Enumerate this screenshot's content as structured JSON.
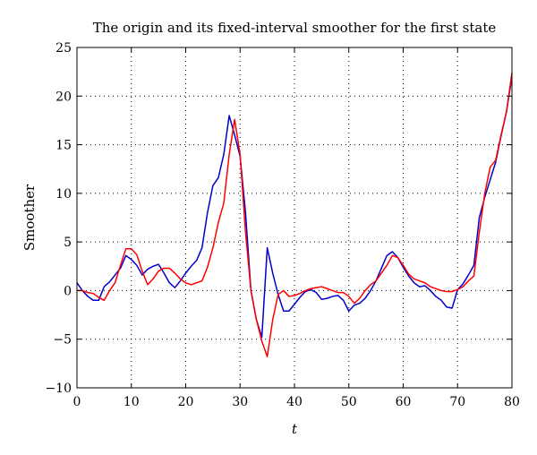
{
  "chart_data": {
    "type": "line",
    "title": "The origin and its fixed-interval smoother for the first state",
    "xlabel": "t",
    "ylabel": "Smoother",
    "xlim": [
      0,
      80
    ],
    "ylim": [
      -10,
      25
    ],
    "xticks": [
      0,
      10,
      20,
      30,
      40,
      50,
      60,
      70,
      80
    ],
    "yticks": [
      -10,
      -5,
      0,
      5,
      10,
      15,
      20,
      25
    ],
    "grid": true,
    "grid_style": "dotted",
    "legend": "none",
    "series": [
      {
        "color": "#0000cc",
        "x": [
          0,
          1,
          2,
          3,
          4,
          5,
          6,
          7,
          8,
          9,
          10,
          11,
          12,
          13,
          14,
          15,
          16,
          17,
          18,
          19,
          20,
          21,
          22,
          23,
          24,
          25,
          26,
          27,
          28,
          29,
          30,
          31,
          32,
          33,
          34,
          35,
          36,
          37,
          38,
          39,
          40,
          41,
          42,
          43,
          44,
          45,
          46,
          47,
          48,
          49,
          50,
          51,
          52,
          53,
          54,
          55,
          56,
          57,
          58,
          59,
          60,
          61,
          62,
          63,
          64,
          65,
          66,
          67,
          68,
          69,
          70,
          71,
          72,
          73,
          74,
          75,
          76,
          77,
          78,
          79,
          80
        ],
        "values": [
          0.8,
          0.0,
          -0.6,
          -1.0,
          -1.0,
          0.4,
          0.9,
          1.6,
          2.3,
          3.6,
          3.2,
          2.6,
          1.6,
          2.2,
          2.5,
          2.7,
          1.8,
          0.8,
          0.3,
          1.0,
          1.8,
          2.5,
          3.1,
          4.4,
          8.0,
          10.8,
          11.6,
          14.0,
          18.0,
          16.0,
          13.8,
          8.0,
          0.0,
          -3.0,
          -4.8,
          4.4,
          1.8,
          -0.4,
          -2.1,
          -2.1,
          -1.4,
          -0.7,
          -0.1,
          0.1,
          -0.2,
          -0.9,
          -0.8,
          -0.6,
          -0.5,
          -1.0,
          -2.1,
          -1.5,
          -1.3,
          -0.8,
          0.0,
          1.0,
          2.3,
          3.6,
          4.0,
          3.4,
          2.4,
          1.5,
          0.8,
          0.4,
          0.5,
          0.0,
          -0.6,
          -1.0,
          -1.7,
          -1.8,
          0.1,
          0.7,
          1.6,
          2.6,
          7.5,
          9.6,
          11.4,
          13.2,
          15.9,
          18.4,
          22.0
        ]
      },
      {
        "color": "#ff0000",
        "x": [
          0,
          1,
          2,
          3,
          4,
          5,
          6,
          7,
          8,
          9,
          10,
          11,
          12,
          13,
          14,
          15,
          16,
          17,
          18,
          19,
          20,
          21,
          22,
          23,
          24,
          25,
          26,
          27,
          28,
          29,
          30,
          31,
          32,
          33,
          34,
          35,
          36,
          37,
          38,
          39,
          40,
          41,
          42,
          43,
          44,
          45,
          46,
          47,
          48,
          49,
          50,
          51,
          52,
          53,
          54,
          55,
          56,
          57,
          58,
          59,
          60,
          61,
          62,
          63,
          64,
          65,
          66,
          67,
          68,
          69,
          70,
          71,
          72,
          73,
          74,
          75,
          76,
          77,
          78,
          79,
          80
        ],
        "values": [
          0.0,
          0.0,
          -0.2,
          -0.3,
          -0.7,
          -1.0,
          0.0,
          0.8,
          2.6,
          4.3,
          4.3,
          3.7,
          2.0,
          0.6,
          1.2,
          2.0,
          2.3,
          2.3,
          1.8,
          1.2,
          0.8,
          0.6,
          0.8,
          1.0,
          2.4,
          4.4,
          7.0,
          9.0,
          14.0,
          17.6,
          14.0,
          6.0,
          0.0,
          -3.0,
          -5.2,
          -6.8,
          -3.0,
          -0.4,
          0.0,
          -0.6,
          -0.5,
          -0.3,
          0.0,
          0.2,
          0.3,
          0.4,
          0.2,
          0.0,
          -0.2,
          -0.2,
          -0.6,
          -1.3,
          -0.8,
          0.0,
          0.6,
          1.0,
          1.8,
          2.6,
          3.6,
          3.4,
          2.6,
          1.7,
          1.2,
          1.0,
          0.8,
          0.4,
          0.2,
          0.0,
          -0.1,
          -0.1,
          0.1,
          0.4,
          1.0,
          1.5,
          6.0,
          10.0,
          12.7,
          13.4,
          16.0,
          18.4,
          22.4
        ]
      }
    ]
  }
}
